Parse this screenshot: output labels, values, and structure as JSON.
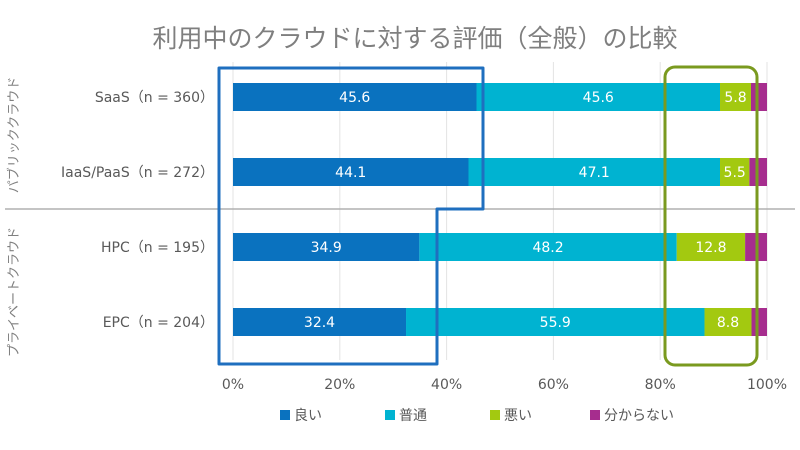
{
  "chart_data": {
    "type": "bar",
    "orientation": "horizontal",
    "stacked": true,
    "title": "利用中のクラウドに対する評価（全般）の比較",
    "categories": [
      "SaaS（n = 360）",
      "IaaS/PaaS（n = 272）",
      "HPC（n = 195）",
      "EPC（n = 204）"
    ],
    "groups": [
      {
        "label": "パブリッククラウド",
        "categories": [
          0,
          1
        ]
      },
      {
        "label": "プライベートクラウド",
        "categories": [
          2,
          3
        ]
      }
    ],
    "series": [
      {
        "name": "良い",
        "color": "#0a72bf",
        "values": [
          45.6,
          44.1,
          34.9,
          32.4
        ]
      },
      {
        "name": "普通",
        "color": "#00b3d1",
        "values": [
          45.6,
          47.1,
          48.2,
          55.9
        ]
      },
      {
        "name": "悪い",
        "color": "#a3c910",
        "values": [
          5.8,
          5.5,
          12.8,
          8.8
        ]
      },
      {
        "name": "分からない",
        "color": "#a62d8e",
        "values": [
          3.0,
          3.3,
          4.1,
          2.9
        ]
      }
    ],
    "data_labels": [
      [
        "45.6",
        "45.6",
        "5.8",
        ""
      ],
      [
        "44.1",
        "47.1",
        "5.5",
        ""
      ],
      [
        "34.9",
        "48.2",
        "12.8",
        ""
      ],
      [
        "32.4",
        "55.9",
        "8.8",
        ""
      ]
    ],
    "xlim": [
      0,
      100
    ],
    "xticks": [
      "0%",
      "20%",
      "40%",
      "60%",
      "80%",
      "100%"
    ],
    "xtick_values": [
      0,
      20,
      40,
      60,
      80,
      100
    ],
    "legend_position": "bottom",
    "highlights": [
      {
        "color": "#1f6fbf",
        "description": "blue outline around 良い segments"
      },
      {
        "color": "#7a9a1f",
        "description": "green outline around 悪い segments"
      }
    ]
  }
}
